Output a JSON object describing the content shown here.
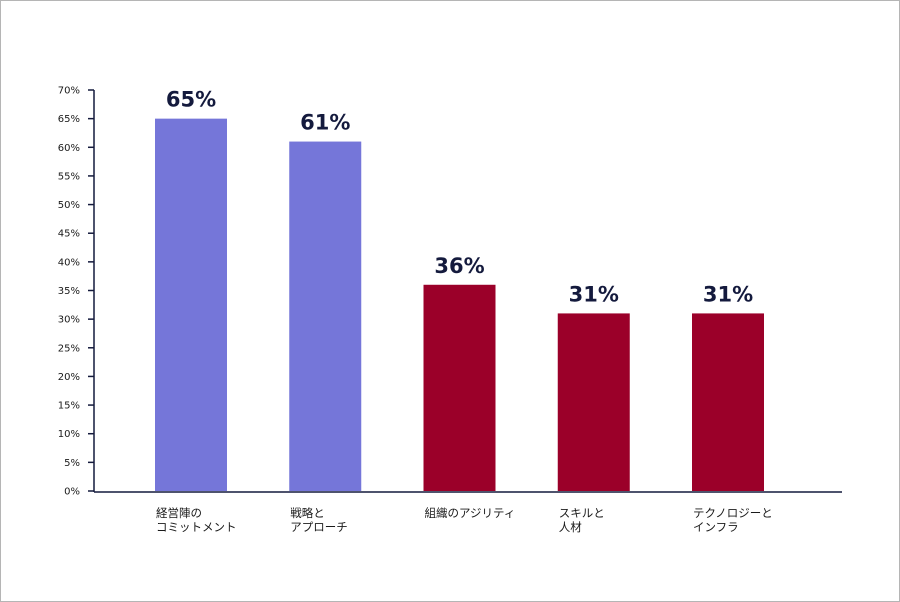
{
  "chart_data": {
    "type": "bar",
    "categories": [
      [
        "経営陣の",
        "コミットメント"
      ],
      [
        "戦略と",
        "アプローチ"
      ],
      [
        "組織のアジリティ"
      ],
      [
        "スキルと",
        "人材"
      ],
      [
        "テクノロジーと",
        "インフラ"
      ]
    ],
    "values": [
      65,
      61,
      36,
      31,
      31
    ],
    "data_labels": [
      "65%",
      "61%",
      "36%",
      "31%",
      "31%"
    ],
    "bar_colors": [
      "#7576d9",
      "#7576d9",
      "#9b0029",
      "#9b0029",
      "#9b0029"
    ],
    "yticks": [
      0,
      5,
      10,
      15,
      20,
      25,
      30,
      35,
      40,
      45,
      50,
      55,
      60,
      65,
      70
    ],
    "ytick_labels": [
      "0%",
      "5%",
      "10%",
      "15%",
      "20%",
      "25%",
      "30%",
      "35%",
      "40%",
      "45%",
      "50%",
      "55%",
      "60%",
      "65%",
      "70%"
    ],
    "ylim": [
      0,
      70
    ],
    "grid": false,
    "legend": "none"
  }
}
